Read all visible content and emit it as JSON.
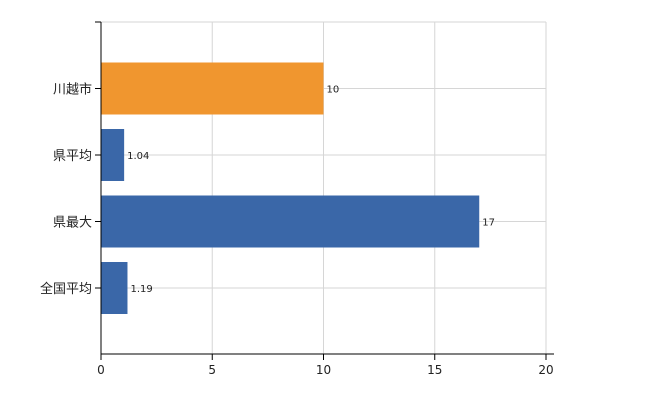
{
  "chart_data": {
    "type": "bar",
    "orientation": "horizontal",
    "categories": [
      "川越市",
      "県平均",
      "県最大",
      "全国平均"
    ],
    "values": [
      10,
      1.04,
      17,
      1.19
    ],
    "data_labels": [
      "10",
      "1.04",
      "17",
      "1.19"
    ],
    "bar_colors": [
      "#F0962F",
      "#3A67A8",
      "#3A67A8",
      "#3A67A8"
    ],
    "title": "",
    "xlabel": "",
    "ylabel": "",
    "xlim": [
      0,
      20
    ],
    "x_ticks": [
      0,
      5,
      10,
      15,
      20
    ],
    "grid": true,
    "legend": "none"
  }
}
